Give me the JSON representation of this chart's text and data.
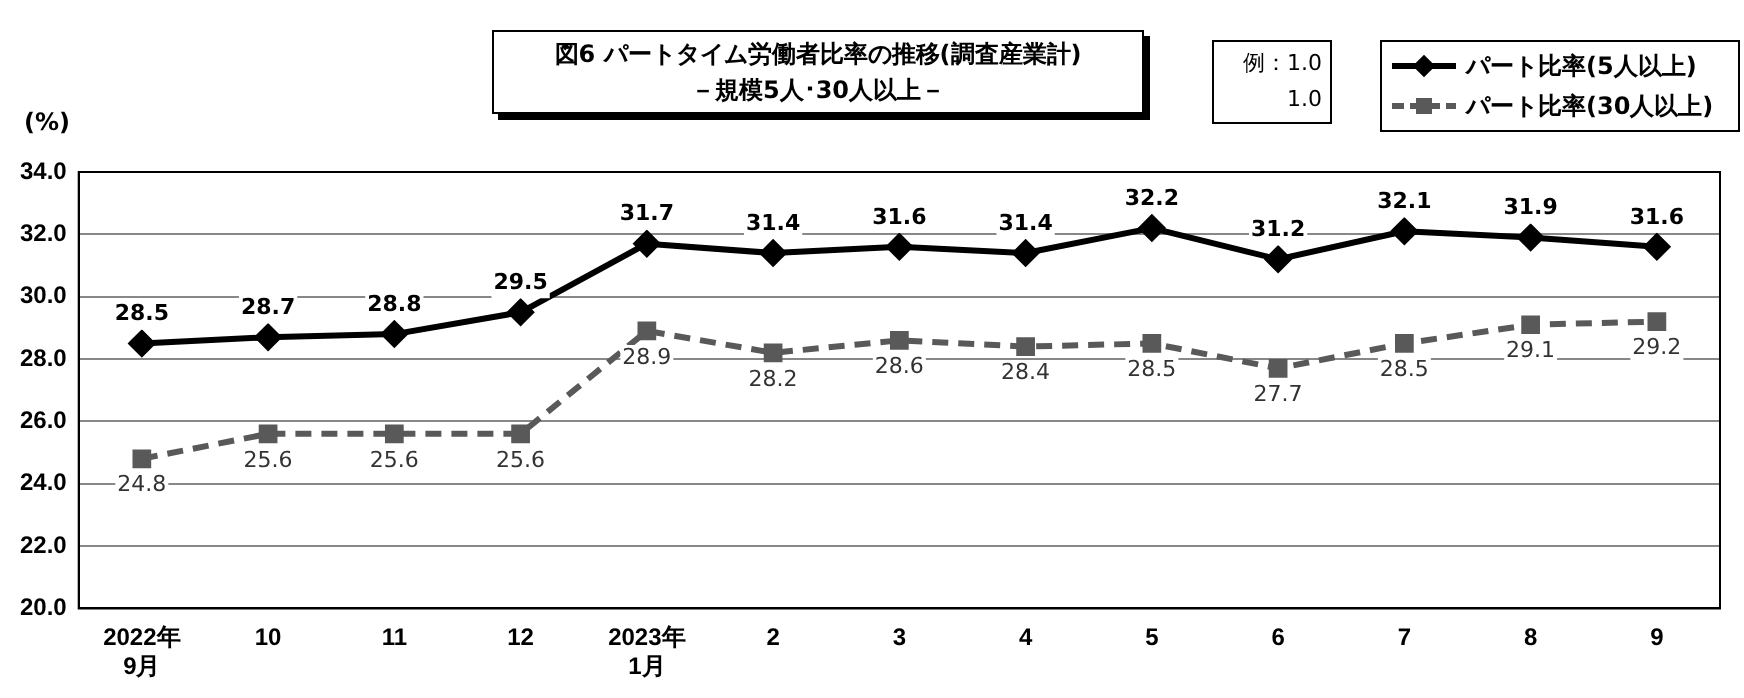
{
  "chart_data": {
    "type": "line",
    "title": "図6  パートタイム労働者比率の推移(調査産業計)",
    "subtitle": "－規模5人･30人以上－",
    "ylabel": "(%)",
    "categories": [
      "2022年\n9月",
      "10",
      "11",
      "12",
      "2023年\n1月",
      "2",
      "3",
      "4",
      "5",
      "6",
      "7",
      "8",
      "9"
    ],
    "series": [
      {
        "name": "パート比率(5人以上)",
        "color": "#000000",
        "marker": "diamond",
        "line_style": "solid",
        "values": [
          28.5,
          28.7,
          28.8,
          29.5,
          31.7,
          31.4,
          31.6,
          31.4,
          32.2,
          31.2,
          32.1,
          31.9,
          31.6
        ]
      },
      {
        "name": "パート比率(30人以上)",
        "color": "#595959",
        "marker": "square",
        "line_style": "dashed",
        "values": [
          24.8,
          25.6,
          25.6,
          25.6,
          28.9,
          28.2,
          28.6,
          28.4,
          28.5,
          27.7,
          28.5,
          29.1,
          29.2
        ]
      }
    ],
    "ylim": [
      20,
      34
    ],
    "yticks": [
      {
        "value": 20,
        "label": "20.0"
      },
      {
        "value": 22,
        "label": "22.0"
      },
      {
        "value": 24,
        "label": "24.0"
      },
      {
        "value": 26,
        "label": "26.0"
      },
      {
        "value": 28,
        "label": "28.0"
      },
      {
        "value": 30,
        "label": "30.0"
      },
      {
        "value": 32,
        "label": "32.0"
      },
      {
        "value": 34,
        "label": "34.0"
      }
    ],
    "grid": "y",
    "legend": "top right",
    "data_labels": true,
    "annotations": [
      "例：1.0",
      "1.0"
    ]
  }
}
